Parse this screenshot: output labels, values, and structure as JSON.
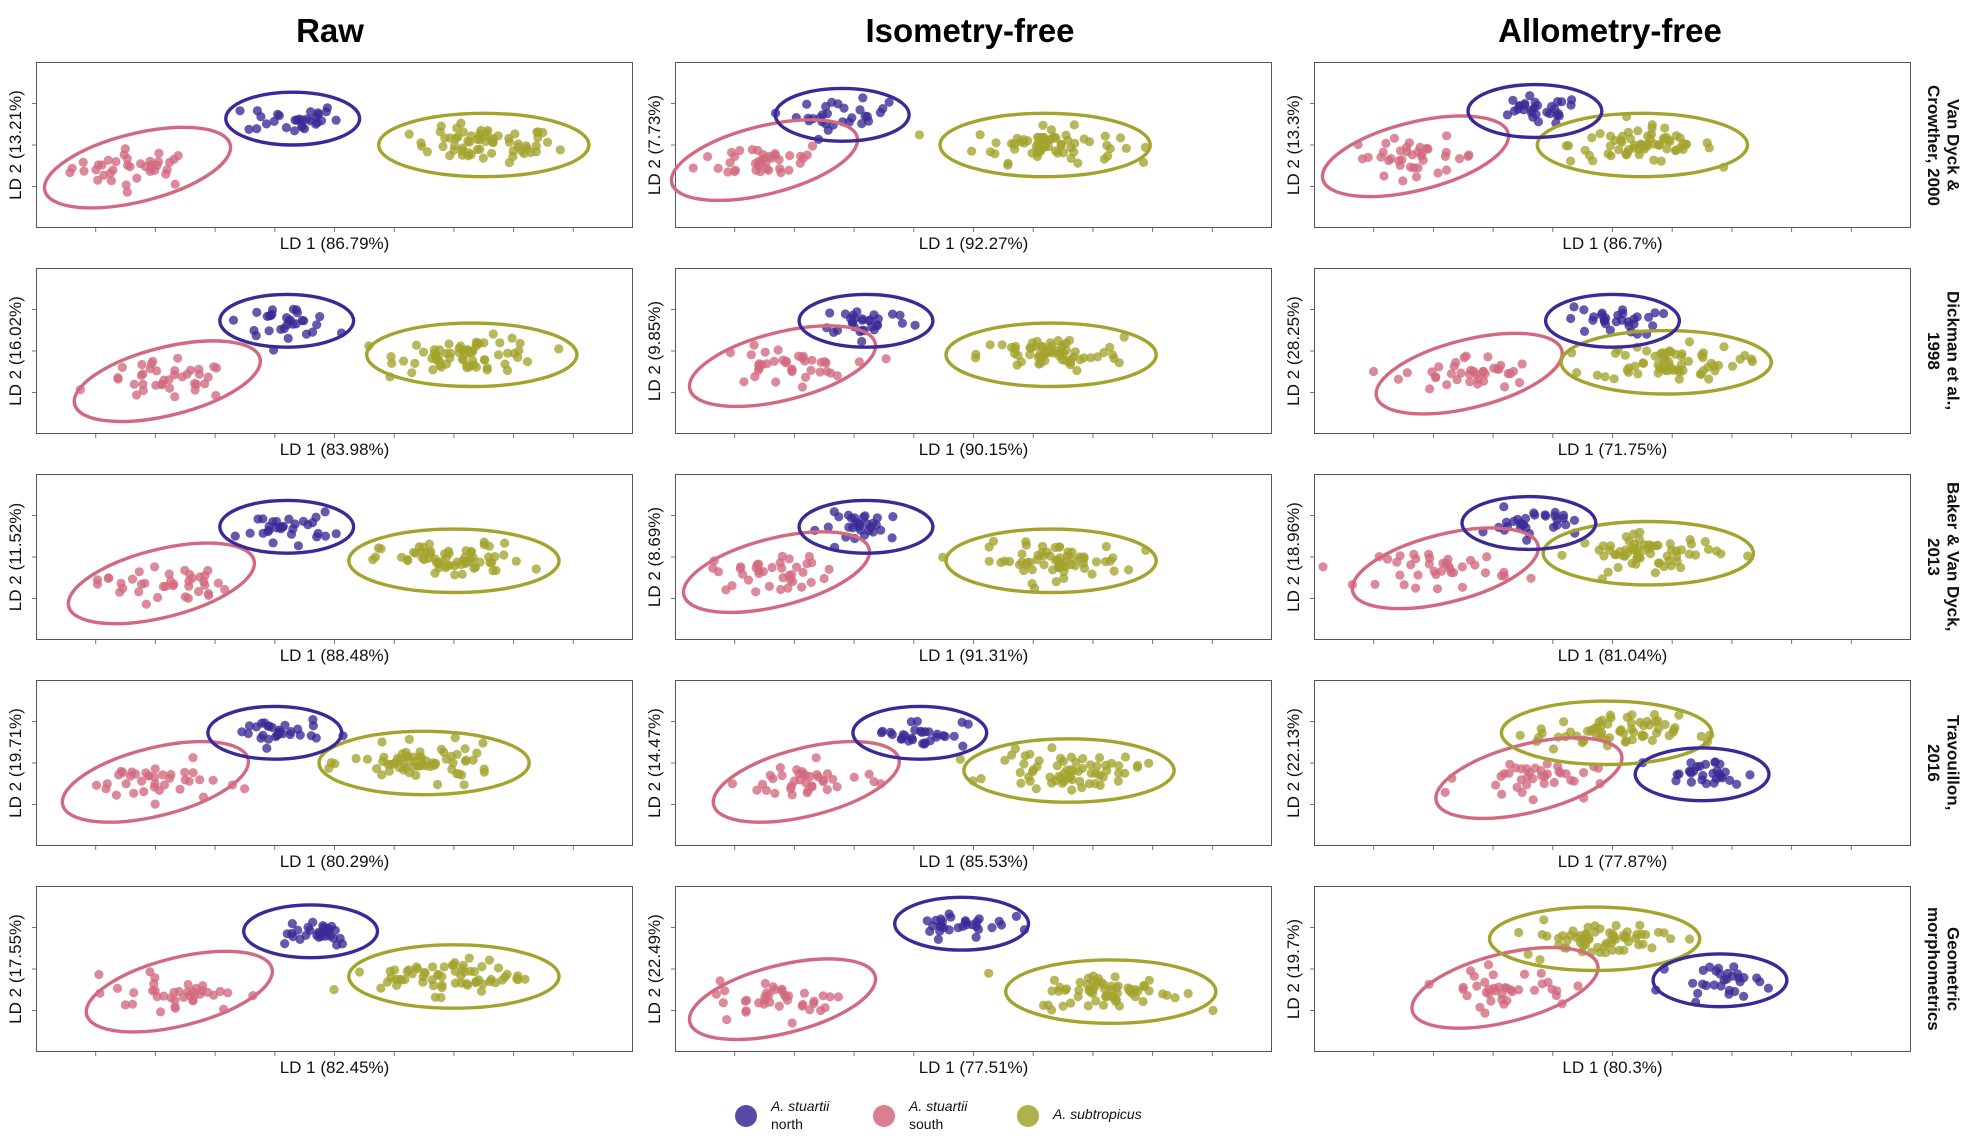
{
  "column_titles": [
    "Raw",
    "Isometry-free",
    "Allometry-free"
  ],
  "row_titles": [
    "Van Dyck &\nCrowther, 2000",
    "Dickman et al.,\n1998",
    "Baker & Van Dyck,\n2013",
    "Travouillon,\n2016",
    "Geometric\nmorphometrics"
  ],
  "colors": {
    "north": "#3a2a97",
    "south": "#d2697e",
    "subtropicus": "#a3a32d"
  },
  "legend": [
    {
      "key": "north",
      "name": "A. stuartii",
      "sub": "north"
    },
    {
      "key": "south",
      "name": "A. stuartii",
      "sub": "south"
    },
    {
      "key": "subtropicus",
      "name": "A. subtropicus",
      "sub": ""
    }
  ],
  "chart_data": [
    {
      "type": "scatter",
      "row": 0,
      "col": 0,
      "xlabel": "LD 1 (86.79%)",
      "ylabel": "LD 2 (13.21%)",
      "groups": {
        "north": [
          -0.7,
          0.7
        ],
        "south": [
          -3.3,
          -0.6
        ],
        "subtropicus": [
          2.5,
          0.0
        ]
      }
    },
    {
      "type": "scatter",
      "row": 0,
      "col": 1,
      "xlabel": "LD 1 (92.27%)",
      "ylabel": "LD 2 (7.73%)",
      "groups": {
        "north": [
          -2.2,
          0.8
        ],
        "south": [
          -3.5,
          -0.4
        ],
        "subtropicus": [
          1.2,
          0.0
        ]
      }
    },
    {
      "type": "scatter",
      "row": 0,
      "col": 2,
      "xlabel": "LD 1 (86.7%)",
      "ylabel": "LD 2 (13.3%)",
      "groups": {
        "north": [
          -1.3,
          0.9
        ],
        "south": [
          -3.3,
          -0.3
        ],
        "subtropicus": [
          0.5,
          0.0
        ]
      }
    },
    {
      "type": "scatter",
      "row": 1,
      "col": 0,
      "xlabel": "LD 1 (83.98%)",
      "ylabel": "LD 2 (16.02%)",
      "groups": {
        "north": [
          -0.8,
          0.8
        ],
        "south": [
          -2.8,
          -0.8
        ],
        "subtropicus": [
          2.3,
          -0.1
        ]
      }
    },
    {
      "type": "scatter",
      "row": 1,
      "col": 1,
      "xlabel": "LD 1 (90.15%)",
      "ylabel": "LD 2 (9.85%)",
      "groups": {
        "north": [
          -1.8,
          0.8
        ],
        "south": [
          -3.2,
          -0.4
        ],
        "subtropicus": [
          1.3,
          -0.1
        ]
      }
    },
    {
      "type": "scatter",
      "row": 1,
      "col": 2,
      "xlabel": "LD 1 (71.75%)",
      "ylabel": "LD 2 (28.25%)",
      "groups": {
        "north": [
          0.0,
          0.8
        ],
        "south": [
          -2.4,
          -0.6
        ],
        "subtropicus": [
          0.9,
          -0.3
        ]
      }
    },
    {
      "type": "scatter",
      "row": 2,
      "col": 0,
      "xlabel": "LD 1 (88.48%)",
      "ylabel": "LD 2 (11.52%)",
      "groups": {
        "north": [
          -0.8,
          0.8
        ],
        "south": [
          -2.9,
          -0.7
        ],
        "subtropicus": [
          2.0,
          -0.1
        ]
      }
    },
    {
      "type": "scatter",
      "row": 2,
      "col": 1,
      "xlabel": "LD 1 (91.31%)",
      "ylabel": "LD 2 (8.69%)",
      "groups": {
        "north": [
          -1.8,
          0.8
        ],
        "south": [
          -3.3,
          -0.4
        ],
        "subtropicus": [
          1.3,
          -0.1
        ]
      }
    },
    {
      "type": "scatter",
      "row": 2,
      "col": 2,
      "xlabel": "LD 1 (81.04%)",
      "ylabel": "LD 2 (18.96%)",
      "groups": {
        "north": [
          -1.4,
          0.9
        ],
        "south": [
          -2.8,
          -0.3
        ],
        "subtropicus": [
          0.6,
          0.1
        ]
      }
    },
    {
      "type": "scatter",
      "row": 3,
      "col": 0,
      "xlabel": "LD 1 (80.29%)",
      "ylabel": "LD 2 (19.71%)",
      "groups": {
        "north": [
          -1.0,
          0.8
        ],
        "south": [
          -3.0,
          -0.5
        ],
        "subtropicus": [
          1.5,
          0.0
        ]
      }
    },
    {
      "type": "scatter",
      "row": 3,
      "col": 1,
      "xlabel": "LD 1 (85.53%)",
      "ylabel": "LD 2 (14.47%)",
      "groups": {
        "north": [
          -0.9,
          0.8
        ],
        "south": [
          -2.8,
          -0.5
        ],
        "subtropicus": [
          1.6,
          -0.2
        ]
      }
    },
    {
      "type": "scatter",
      "row": 3,
      "col": 2,
      "xlabel": "LD 1 (77.87%)",
      "ylabel": "LD 2 (22.13%)",
      "groups": {
        "north": [
          1.5,
          -0.3
        ],
        "south": [
          -1.4,
          -0.4
        ],
        "subtropicus": [
          -0.1,
          0.8
        ]
      }
    },
    {
      "type": "scatter",
      "row": 4,
      "col": 0,
      "xlabel": "LD 1 (82.45%)",
      "ylabel": "LD 2 (17.55%)",
      "groups": {
        "north": [
          -0.4,
          1.0
        ],
        "south": [
          -2.6,
          -0.6
        ],
        "subtropicus": [
          2.0,
          -0.2
        ]
      }
    },
    {
      "type": "scatter",
      "row": 4,
      "col": 1,
      "xlabel": "LD 1 (77.51%)",
      "ylabel": "LD 2 (22.49%)",
      "groups": {
        "north": [
          -0.2,
          1.2
        ],
        "south": [
          -3.2,
          -0.8
        ],
        "subtropicus": [
          2.3,
          -0.6
        ]
      }
    },
    {
      "type": "scatter",
      "row": 4,
      "col": 2,
      "xlabel": "LD 1 (80.3%)",
      "ylabel": "LD 2 (19.7%)",
      "groups": {
        "north": [
          1.8,
          -0.3
        ],
        "south": [
          -1.8,
          -0.5
        ],
        "subtropicus": [
          -0.3,
          0.8
        ]
      }
    }
  ]
}
